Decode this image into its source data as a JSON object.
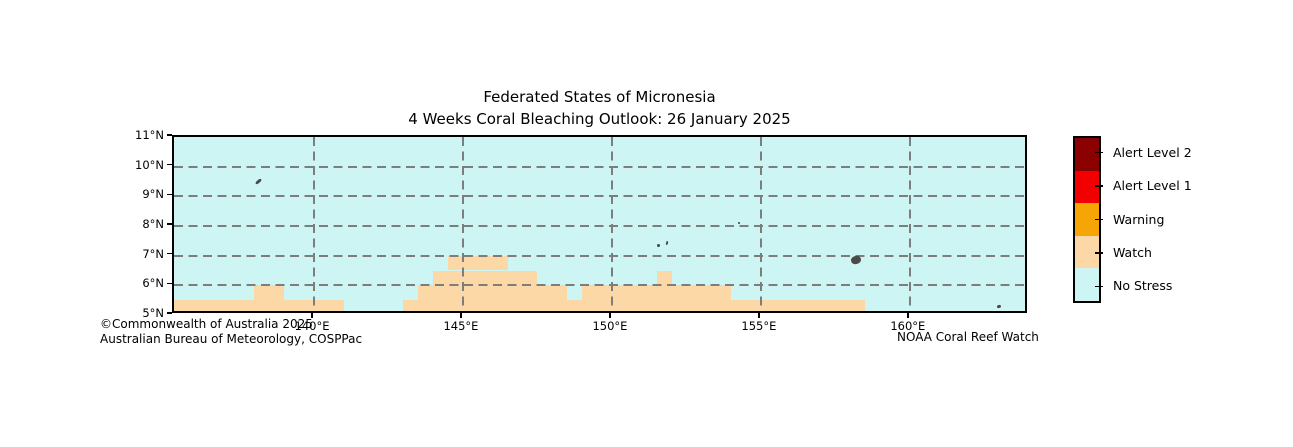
{
  "title": {
    "line1": "Federated States of Micronesia",
    "line2": "4 Weeks Coral Bleaching Outlook: 26 January 2025"
  },
  "credits": {
    "line1": "©Commonwealth of Australia 2025",
    "line2": "Australian Bureau of Meteorology, COSPPac",
    "right": "NOAA Coral Reef Watch"
  },
  "map": {
    "lon_min": 135.3,
    "lon_max": 164.0,
    "lat_min": 5,
    "lat_max": 11,
    "colors": {
      "no_stress": "#CDF5F3",
      "watch": "#FCD8A6",
      "gridline": "#7d7d7d",
      "island": "#4a4a4a",
      "border": "#000000"
    },
    "grid_lons": [
      140,
      145,
      150,
      155,
      160
    ],
    "grid_lats": [
      6,
      7,
      8,
      9,
      10
    ],
    "x_ticks": [
      {
        "lon": 140,
        "label": "140°E"
      },
      {
        "lon": 145,
        "label": "145°E"
      },
      {
        "lon": 150,
        "label": "150°E"
      },
      {
        "lon": 155,
        "label": "155°E"
      },
      {
        "lon": 160,
        "label": "160°E"
      }
    ],
    "y_ticks": [
      {
        "lat": 11,
        "label": "11°N"
      },
      {
        "lat": 10,
        "label": "10°N"
      },
      {
        "lat": 9,
        "label": "9°N"
      },
      {
        "lat": 8,
        "label": "8°N"
      },
      {
        "lat": 7,
        "label": "7°N"
      },
      {
        "lat": 6,
        "label": "6°N"
      },
      {
        "lat": 5,
        "label": "5°N"
      }
    ],
    "watch_cells": [
      {
        "lon1": 135.3,
        "lon2": 141.0,
        "lat1": 5.0,
        "lat2": 5.5
      },
      {
        "lon1": 143.0,
        "lon2": 158.5,
        "lat1": 5.0,
        "lat2": 5.5
      },
      {
        "lon1": 138.0,
        "lon2": 139.0,
        "lat1": 5.5,
        "lat2": 6.0
      },
      {
        "lon1": 143.5,
        "lon2": 148.5,
        "lat1": 5.5,
        "lat2": 6.0
      },
      {
        "lon1": 149.0,
        "lon2": 154.0,
        "lat1": 5.5,
        "lat2": 6.0
      },
      {
        "lon1": 144.0,
        "lon2": 147.5,
        "lat1": 6.0,
        "lat2": 6.5
      },
      {
        "lon1": 151.5,
        "lon2": 152.0,
        "lat1": 6.0,
        "lat2": 6.5
      },
      {
        "lon1": 144.5,
        "lon2": 146.5,
        "lat1": 6.5,
        "lat2": 7.0
      }
    ],
    "islands": [
      {
        "name": "yap",
        "lon": 138.15,
        "lat": 9.5,
        "w": 7,
        "h": 3,
        "rot": -40
      },
      {
        "name": "chuuk-a",
        "lon": 151.55,
        "lat": 7.35,
        "w": 3,
        "h": 3,
        "rot": 0
      },
      {
        "name": "chuuk-b",
        "lon": 151.85,
        "lat": 7.42,
        "w": 2,
        "h": 4,
        "rot": 12
      },
      {
        "name": "oroluk",
        "lon": 154.25,
        "lat": 8.1,
        "w": 2,
        "h": 2,
        "rot": 0
      },
      {
        "name": "pohnpei",
        "lon": 158.2,
        "lat": 6.85,
        "w": 10,
        "h": 8,
        "rot": -15
      },
      {
        "name": "kosrae",
        "lon": 163.0,
        "lat": 5.3,
        "w": 4,
        "h": 3,
        "rot": -20
      }
    ]
  },
  "legend": {
    "entries": [
      {
        "key": "alert-level-2",
        "label": "Alert Level 2",
        "color": "#8B0000"
      },
      {
        "key": "alert-level-1",
        "label": "Alert Level 1",
        "color": "#F20000"
      },
      {
        "key": "warning",
        "label": "Warning",
        "color": "#F5A505"
      },
      {
        "key": "watch",
        "label": "Watch",
        "color": "#FCD8A6"
      },
      {
        "key": "no-stress",
        "label": "No Stress",
        "color": "#CDF5F3"
      }
    ]
  }
}
